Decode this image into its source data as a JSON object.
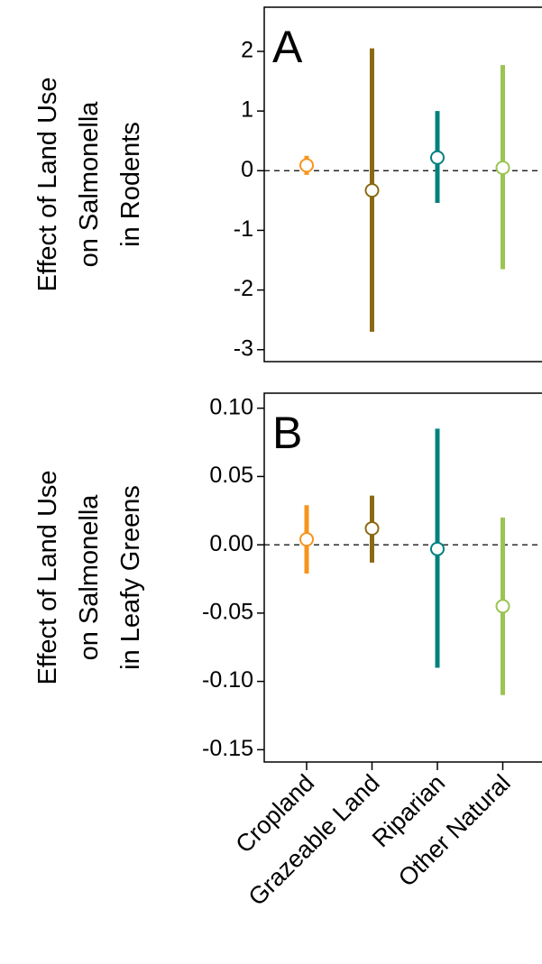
{
  "chart_data": [
    {
      "type": "errorbar",
      "label": "A",
      "ylabel": [
        "Effect of Land Use",
        "on Salmonella",
        "in Rodents"
      ],
      "values": [
        0.09,
        -0.33,
        0.22,
        0.05
      ],
      "lower": [
        -0.07,
        -2.7,
        -0.54,
        -1.65
      ],
      "upper": [
        0.25,
        2.05,
        1.0,
        1.77
      ],
      "colors": [
        "#f7941d",
        "#8b6914",
        "#00817f",
        "#9bc453"
      ],
      "ylim": [
        -3.2,
        2.74
      ],
      "yticks": [
        -3,
        -2,
        -1,
        0,
        1,
        2
      ]
    },
    {
      "type": "errorbar",
      "label": "B",
      "ylabel": [
        "Effect of Land Use",
        "on Salmonella",
        "in Leafy Greens"
      ],
      "categories": [
        "Cropland",
        "Grazeable Land",
        "Riparian",
        "Other Natural"
      ],
      "values": [
        0.004,
        0.012,
        -0.003,
        -0.045
      ],
      "lower": [
        -0.021,
        -0.013,
        -0.09,
        -0.11
      ],
      "upper": [
        0.029,
        0.036,
        0.085,
        0.02
      ],
      "colors": [
        "#f7941d",
        "#8b6914",
        "#00817f",
        "#9bc453"
      ],
      "ylim": [
        -0.159,
        0.111
      ],
      "yticks": [
        {
          "value": -0.15,
          "label": "-0.15"
        },
        {
          "value": -0.1,
          "label": "-0.10"
        },
        {
          "value": -0.05,
          "label": "-0.05"
        },
        {
          "value": 0,
          "label": "0.00"
        },
        {
          "value": 0.05,
          "label": "0.05"
        },
        {
          "value": 0.1,
          "label": "0.10"
        }
      ]
    }
  ]
}
